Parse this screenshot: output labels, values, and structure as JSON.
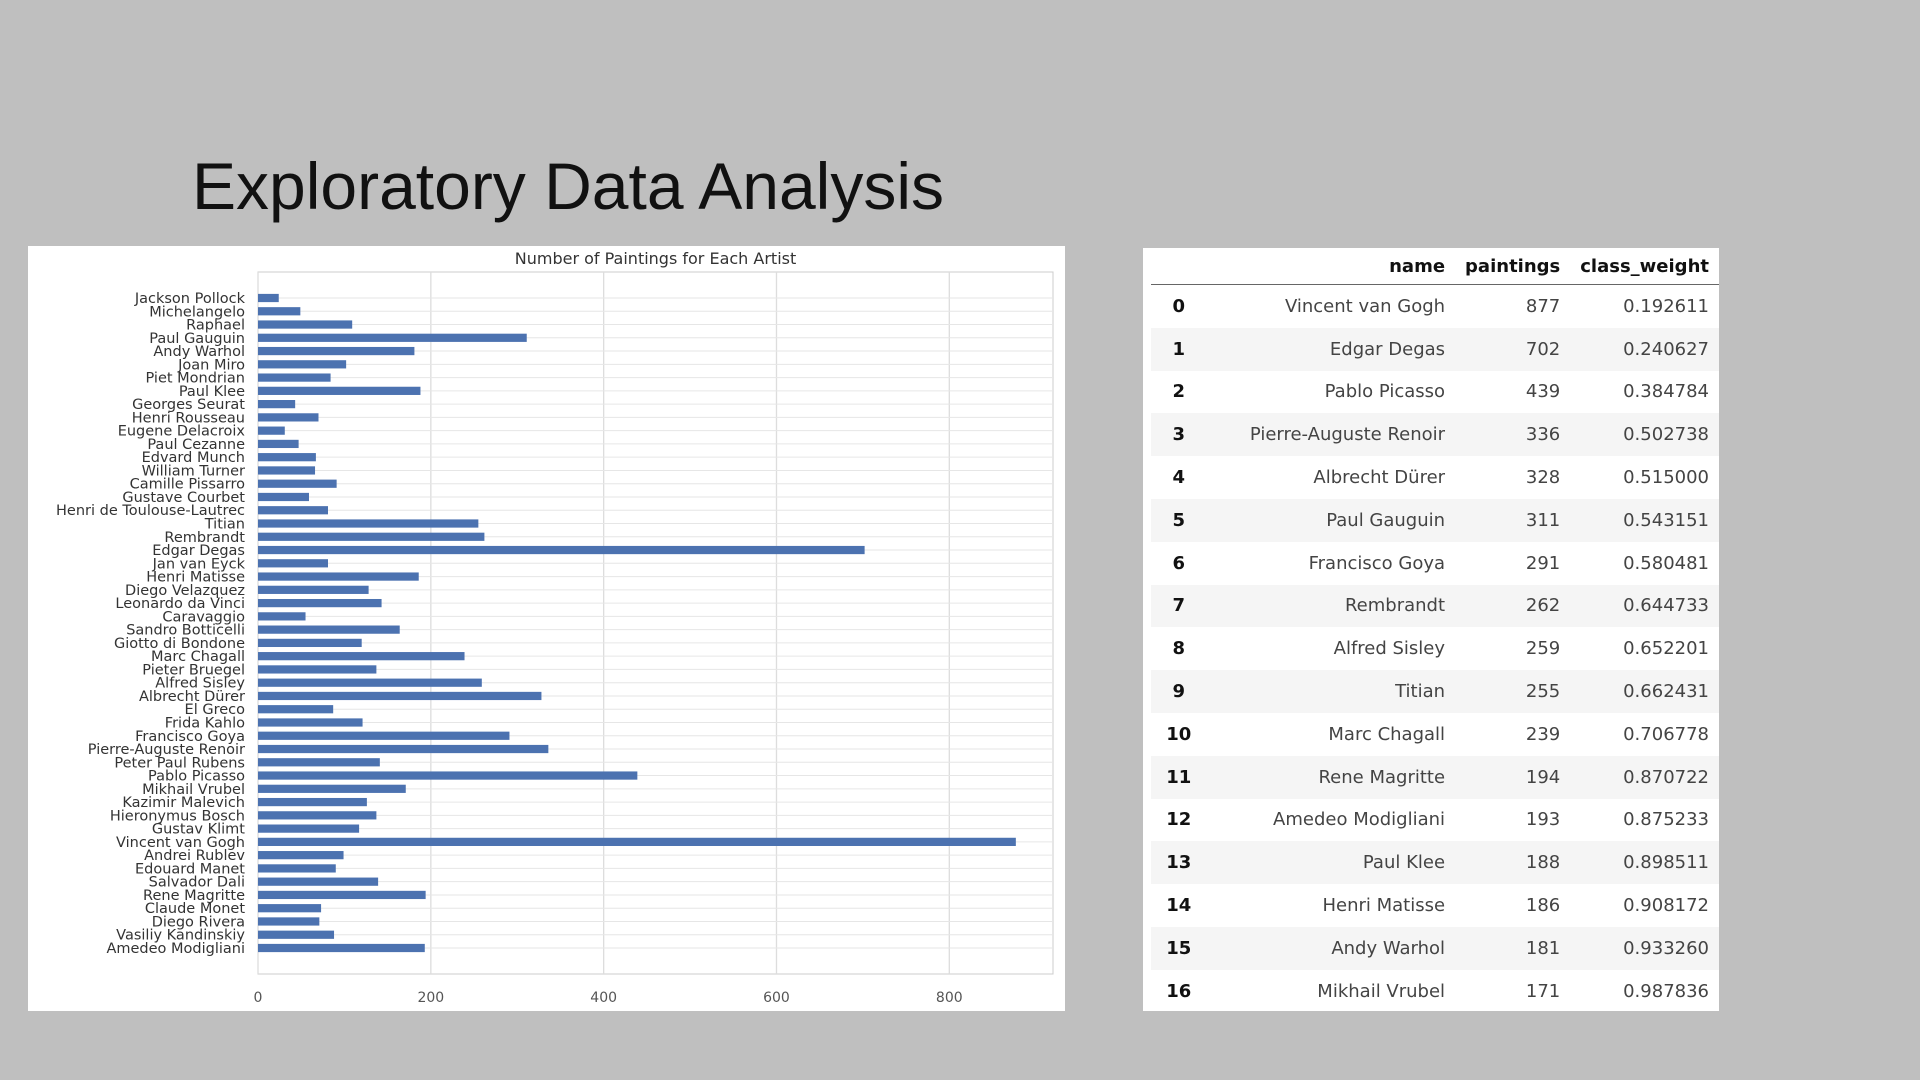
{
  "slide": {
    "title": "Exploratory Data Analysis"
  },
  "colors": {
    "bar": "#4c72b0",
    "grid": "#dddddd",
    "background": "#bfbfbf"
  },
  "chart_data": {
    "type": "bar",
    "orientation": "horizontal",
    "title": "Number of Paintings for Each Artist",
    "xlabel": "",
    "ylabel": "",
    "xlim": [
      0,
      920
    ],
    "xticks": [
      0,
      200,
      400,
      600,
      800
    ],
    "grid": true,
    "categories": [
      "Jackson Pollock",
      "Michelangelo",
      "Raphael",
      "Paul Gauguin",
      "Andy Warhol",
      "Joan Miro",
      "Piet Mondrian",
      "Paul Klee",
      "Georges Seurat",
      "Henri Rousseau",
      "Eugene Delacroix",
      "Paul Cezanne",
      "Edvard Munch",
      "William Turner",
      "Camille Pissarro",
      "Gustave Courbet",
      "Henri de Toulouse-Lautrec",
      "Titian",
      "Rembrandt",
      "Edgar Degas",
      "Jan van Eyck",
      "Henri Matisse",
      "Diego Velazquez",
      "Leonardo da Vinci",
      "Caravaggio",
      "Sandro Botticelli",
      "Giotto di Bondone",
      "Marc Chagall",
      "Pieter Bruegel",
      "Alfred Sisley",
      "Albrecht Dürer",
      "El Greco",
      "Frida Kahlo",
      "Francisco Goya",
      "Pierre-Auguste Renoir",
      "Peter Paul Rubens",
      "Pablo Picasso",
      "Mikhail Vrubel",
      "Kazimir Malevich",
      "Hieronymus Bosch",
      "Gustav Klimt",
      "Vincent van Gogh",
      "Andrei Rublev",
      "Edouard Manet",
      "Salvador Dali",
      "Rene Magritte",
      "Claude Monet",
      "Diego Rivera",
      "Vasiliy Kandinskiy",
      "Amedeo Modigliani"
    ],
    "values": [
      24,
      49,
      109,
      311,
      181,
      102,
      84,
      188,
      43,
      70,
      31,
      47,
      67,
      66,
      91,
      59,
      81,
      255,
      262,
      702,
      81,
      186,
      128,
      143,
      55,
      164,
      120,
      239,
      137,
      259,
      328,
      87,
      121,
      291,
      336,
      141,
      439,
      171,
      126,
      137,
      117,
      877,
      99,
      90,
      139,
      194,
      73,
      71,
      88,
      193
    ]
  },
  "table": {
    "columns": [
      "",
      "name",
      "paintings",
      "class_weight"
    ],
    "rows": [
      {
        "index": "0",
        "name": "Vincent van Gogh",
        "paintings": "877",
        "class_weight": "0.192611"
      },
      {
        "index": "1",
        "name": "Edgar Degas",
        "paintings": "702",
        "class_weight": "0.240627"
      },
      {
        "index": "2",
        "name": "Pablo Picasso",
        "paintings": "439",
        "class_weight": "0.384784"
      },
      {
        "index": "3",
        "name": "Pierre-Auguste Renoir",
        "paintings": "336",
        "class_weight": "0.502738"
      },
      {
        "index": "4",
        "name": "Albrecht Dürer",
        "paintings": "328",
        "class_weight": "0.515000"
      },
      {
        "index": "5",
        "name": "Paul Gauguin",
        "paintings": "311",
        "class_weight": "0.543151"
      },
      {
        "index": "6",
        "name": "Francisco Goya",
        "paintings": "291",
        "class_weight": "0.580481"
      },
      {
        "index": "7",
        "name": "Rembrandt",
        "paintings": "262",
        "class_weight": "0.644733"
      },
      {
        "index": "8",
        "name": "Alfred Sisley",
        "paintings": "259",
        "class_weight": "0.652201"
      },
      {
        "index": "9",
        "name": "Titian",
        "paintings": "255",
        "class_weight": "0.662431"
      },
      {
        "index": "10",
        "name": "Marc Chagall",
        "paintings": "239",
        "class_weight": "0.706778"
      },
      {
        "index": "11",
        "name": "Rene Magritte",
        "paintings": "194",
        "class_weight": "0.870722"
      },
      {
        "index": "12",
        "name": "Amedeo Modigliani",
        "paintings": "193",
        "class_weight": "0.875233"
      },
      {
        "index": "13",
        "name": "Paul Klee",
        "paintings": "188",
        "class_weight": "0.898511"
      },
      {
        "index": "14",
        "name": "Henri Matisse",
        "paintings": "186",
        "class_weight": "0.908172"
      },
      {
        "index": "15",
        "name": "Andy Warhol",
        "paintings": "181",
        "class_weight": "0.933260"
      },
      {
        "index": "16",
        "name": "Mikhail Vrubel",
        "paintings": "171",
        "class_weight": "0.987836"
      }
    ]
  }
}
